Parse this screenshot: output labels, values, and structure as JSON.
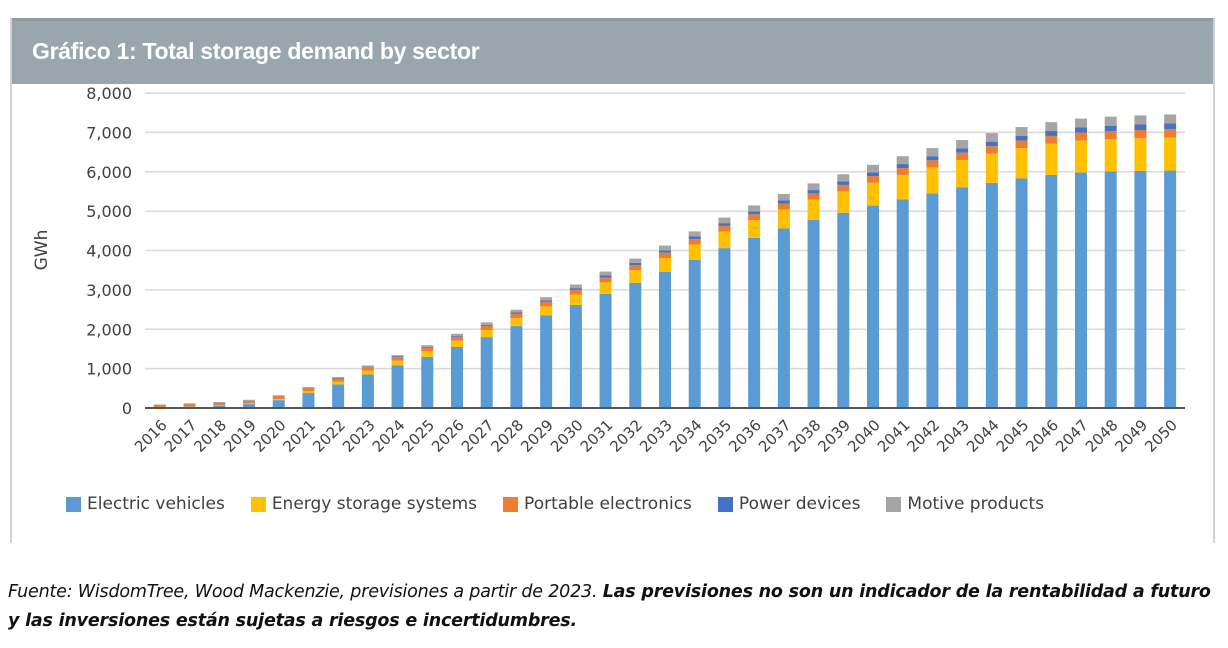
{
  "header": {
    "title": "Gráfico 1: Total storage demand by sector"
  },
  "footnote": {
    "source": "Fuente: WisdomTree, Wood Mackenzie, previsiones a partir de 2023. ",
    "disclaimer": "Las previsiones no son un indicador de la rentabilidad a futuro y las inversiones están sujetas a riesgos e incertidumbres."
  },
  "chart_data": {
    "type": "bar",
    "stacked": true,
    "title": "Gráfico 1: Total storage demand by sector",
    "xlabel": "",
    "ylabel": "GWh",
    "ylim": [
      0,
      8000
    ],
    "yticks": [
      0,
      1000,
      2000,
      3000,
      4000,
      5000,
      6000,
      7000,
      8000
    ],
    "ytick_labels": [
      "0",
      "1,000",
      "2,000",
      "3,000",
      "4,000",
      "5,000",
      "6,000",
      "7,000",
      "8,000"
    ],
    "grid": "horizontal",
    "legend_position": "bottom",
    "categories": [
      "2016",
      "2017",
      "2018",
      "2019",
      "2020",
      "2021",
      "2022",
      "2023",
      "2024",
      "2025",
      "2026",
      "2027",
      "2028",
      "2029",
      "2030",
      "2031",
      "2032",
      "2033",
      "2034",
      "2035",
      "2036",
      "2037",
      "2038",
      "2039",
      "2040",
      "2041",
      "2042",
      "2043",
      "2044",
      "2045",
      "2046",
      "2047",
      "2048",
      "2049",
      "2050"
    ],
    "series": [
      {
        "name": "Electric vehicles",
        "color": "#5b9bd5",
        "values": [
          20,
          40,
          60,
          100,
          200,
          380,
          600,
          850,
          1080,
          1300,
          1550,
          1800,
          2080,
          2350,
          2620,
          2900,
          3180,
          3460,
          3760,
          4060,
          4320,
          4560,
          4780,
          4960,
          5140,
          5300,
          5450,
          5600,
          5720,
          5830,
          5920,
          5980,
          6010,
          6020,
          6030
        ]
      },
      {
        "name": "Energy storage systems",
        "color": "#ffc000",
        "values": [
          5,
          8,
          12,
          20,
          30,
          50,
          70,
          100,
          120,
          140,
          160,
          180,
          200,
          230,
          260,
          290,
          320,
          350,
          390,
          420,
          450,
          480,
          510,
          540,
          580,
          620,
          660,
          700,
          740,
          770,
          790,
          810,
          820,
          830,
          840
        ]
      },
      {
        "name": "Portable electronics",
        "color": "#ed7d31",
        "values": [
          50,
          55,
          60,
          65,
          70,
          75,
          80,
          85,
          90,
          95,
          100,
          105,
          110,
          115,
          120,
          125,
          130,
          135,
          140,
          145,
          150,
          155,
          160,
          165,
          170,
          175,
          180,
          185,
          190,
          195,
          200,
          205,
          205,
          210,
          210
        ]
      },
      {
        "name": "Power devices",
        "color": "#4472c4",
        "values": [
          5,
          5,
          6,
          7,
          8,
          10,
          12,
          15,
          18,
          20,
          25,
          30,
          35,
          40,
          45,
          50,
          55,
          60,
          65,
          70,
          75,
          80,
          85,
          90,
          95,
          100,
          105,
          110,
          115,
          120,
          125,
          130,
          135,
          140,
          145
        ]
      },
      {
        "name": "Motive products",
        "color": "#a5a5a5",
        "values": [
          10,
          12,
          14,
          16,
          18,
          20,
          25,
          30,
          35,
          40,
          50,
          60,
          70,
          80,
          90,
          100,
          110,
          120,
          130,
          140,
          150,
          160,
          170,
          180,
          190,
          200,
          205,
          210,
          215,
          220,
          225,
          225,
          230,
          230,
          230
        ]
      }
    ]
  }
}
